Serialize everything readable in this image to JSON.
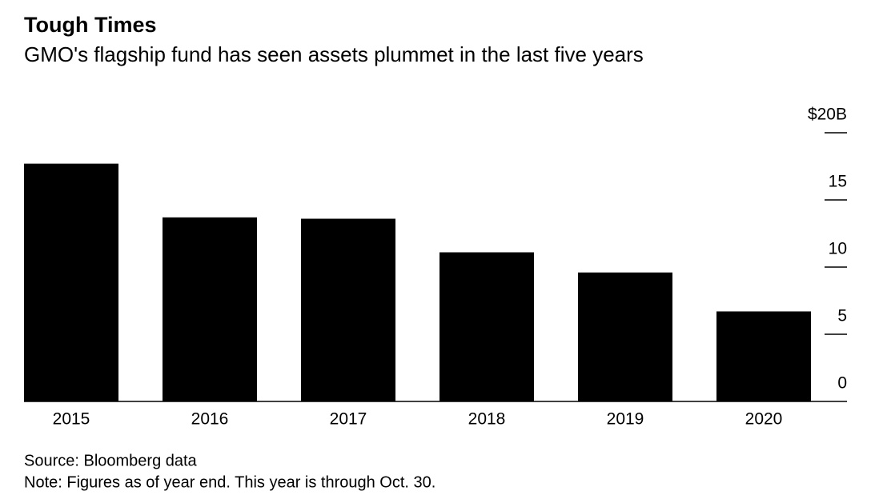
{
  "chart_data": {
    "type": "bar",
    "title": "Tough Times",
    "subtitle": "GMO's flagship fund has seen assets plummet in the last five years",
    "categories": [
      "2015",
      "2016",
      "2017",
      "2018",
      "2019",
      "2020"
    ],
    "values": [
      17.7,
      13.7,
      13.6,
      11.1,
      9.6,
      6.7
    ],
    "color": "#000000",
    "ylim": [
      0,
      20
    ],
    "yticks": [
      0,
      5,
      10,
      15,
      {
        "value": 20,
        "label": "$20B"
      }
    ],
    "source": "Source: Bloomberg data",
    "note": "Note: Figures as of year end. This year is through Oct. 30."
  }
}
